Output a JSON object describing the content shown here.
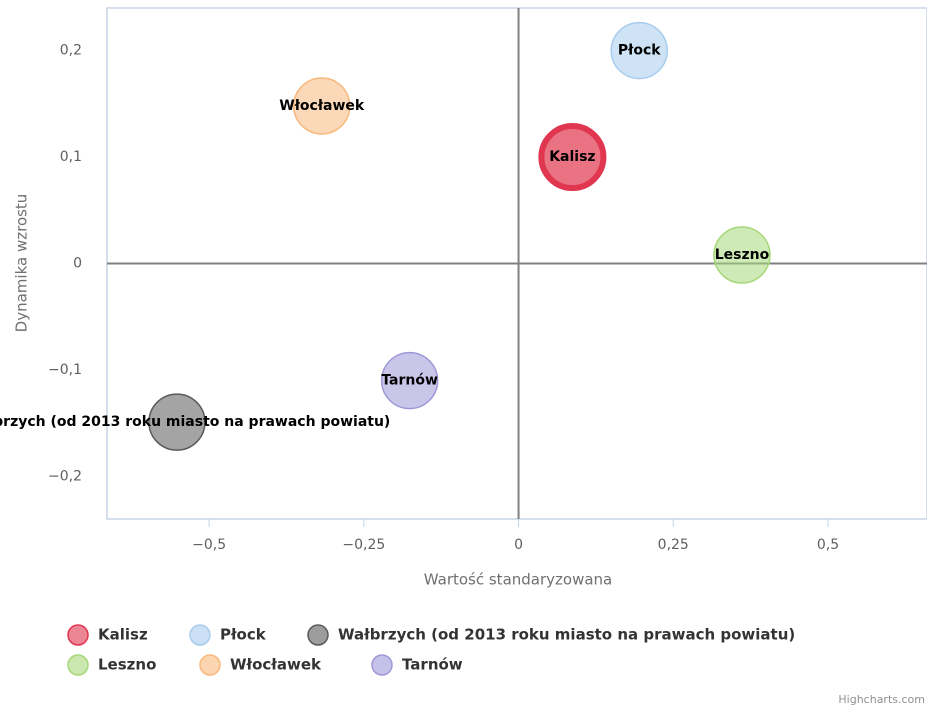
{
  "chart_data": {
    "type": "scatter",
    "x_label": "Wartość standaryzowana",
    "y_label": "Dynamika wzrostu",
    "credits": "Highcharts.com",
    "xlim": [
      -0.665,
      0.66
    ],
    "ylim": [
      -0.24,
      0.24
    ],
    "xticks": [
      {
        "value": -0.5,
        "label": "−0,5"
      },
      {
        "value": -0.25,
        "label": "−0,25"
      },
      0,
      {
        "value": 0.25,
        "label": "0,25"
      },
      {
        "value": 0.5,
        "label": "0,5"
      }
    ],
    "yticks": [
      {
        "value": -0.2,
        "label": "−0,2"
      },
      {
        "value": -0.1,
        "label": "−0,1"
      },
      0,
      {
        "value": 0.1,
        "label": "0,1"
      },
      {
        "value": 0.2,
        "label": "0,2"
      }
    ],
    "series": [
      {
        "name": "Kalisz",
        "color": "#e0364f",
        "x": [
          0.087
        ],
        "values": [
          0.1
        ]
      },
      {
        "name": "Płock",
        "color": "#a8ccee",
        "x": [
          0.195
        ],
        "values": [
          0.2
        ]
      },
      {
        "name": "Wałbrzych (od 2013 roku miasto na prawach powiatu)",
        "color": "#5a5a5a",
        "x": [
          -0.552
        ],
        "values": [
          -0.149
        ]
      },
      {
        "name": "Leszno",
        "color": "#a6d87a",
        "x": [
          0.361
        ],
        "values": [
          0.008
        ]
      },
      {
        "name": "Włocławek",
        "color": "#f8b87c",
        "x": [
          -0.318
        ],
        "values": [
          0.148
        ]
      },
      {
        "name": "Tarnów",
        "color": "#9f98d8",
        "x": [
          -0.176
        ],
        "values": [
          -0.11
        ]
      }
    ]
  }
}
